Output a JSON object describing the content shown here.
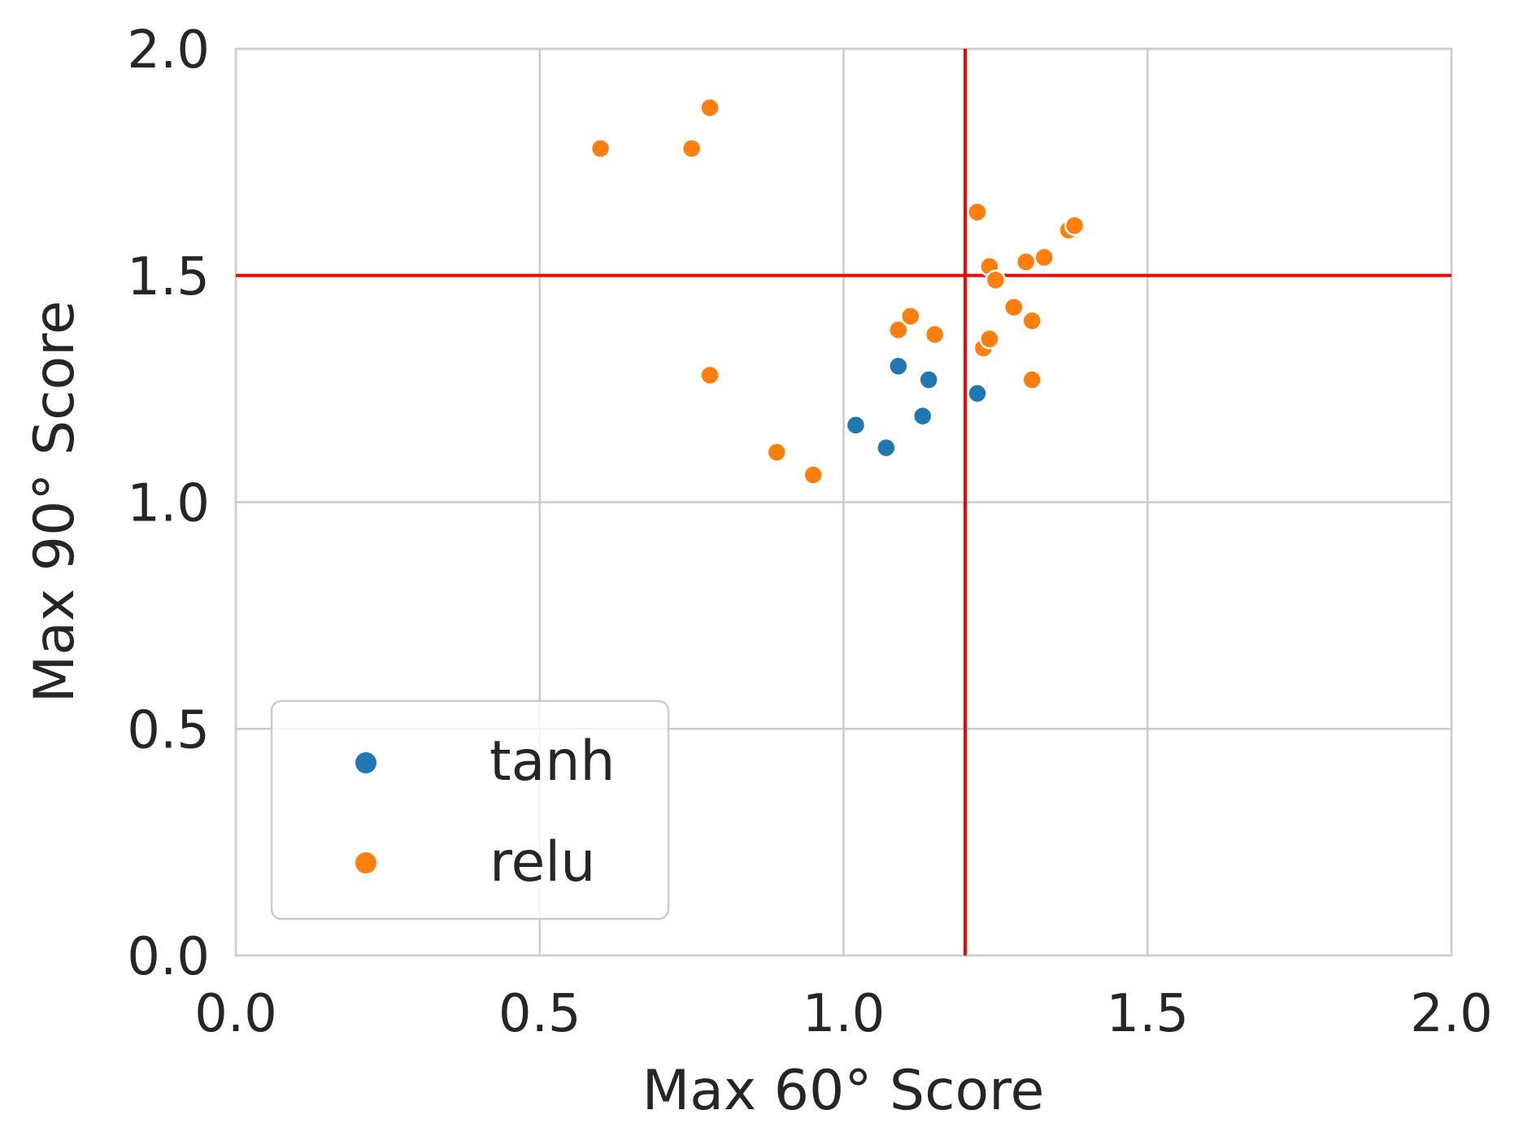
{
  "chart_data": {
    "type": "scatter",
    "title": "",
    "xlabel": "Max 60° Score",
    "ylabel": "Max 90° Score",
    "xlim": [
      0.0,
      2.0
    ],
    "ylim": [
      0.0,
      2.0
    ],
    "x_ticks": [
      "0.0",
      "0.5",
      "1.0",
      "1.5",
      "2.0"
    ],
    "y_ticks": [
      "0.0",
      "0.5",
      "1.0",
      "1.5",
      "2.0"
    ],
    "grid": true,
    "legend_position": "lower-left",
    "reference_lines": {
      "vertical_x": 1.2,
      "horizontal_y": 1.5,
      "color": "#ff0000"
    },
    "series": [
      {
        "name": "tanh",
        "color": "#1f77b4",
        "points": [
          {
            "x": 1.09,
            "y": 1.3
          },
          {
            "x": 1.14,
            "y": 1.27
          },
          {
            "x": 1.22,
            "y": 1.24
          },
          {
            "x": 1.13,
            "y": 1.19
          },
          {
            "x": 1.02,
            "y": 1.17
          },
          {
            "x": 1.07,
            "y": 1.12
          }
        ]
      },
      {
        "name": "relu",
        "color": "#ff7f0e",
        "points": [
          {
            "x": 0.6,
            "y": 1.78
          },
          {
            "x": 0.75,
            "y": 1.78
          },
          {
            "x": 0.78,
            "y": 1.87
          },
          {
            "x": 0.78,
            "y": 1.28
          },
          {
            "x": 0.89,
            "y": 1.11
          },
          {
            "x": 0.95,
            "y": 1.06
          },
          {
            "x": 1.09,
            "y": 1.38
          },
          {
            "x": 1.11,
            "y": 1.41
          },
          {
            "x": 1.15,
            "y": 1.37
          },
          {
            "x": 1.22,
            "y": 1.64
          },
          {
            "x": 1.23,
            "y": 1.34
          },
          {
            "x": 1.24,
            "y": 1.36
          },
          {
            "x": 1.24,
            "y": 1.52
          },
          {
            "x": 1.25,
            "y": 1.49
          },
          {
            "x": 1.28,
            "y": 1.43
          },
          {
            "x": 1.3,
            "y": 1.53
          },
          {
            "x": 1.31,
            "y": 1.4
          },
          {
            "x": 1.31,
            "y": 1.27
          },
          {
            "x": 1.33,
            "y": 1.54
          },
          {
            "x": 1.37,
            "y": 1.6
          },
          {
            "x": 1.38,
            "y": 1.61
          }
        ]
      }
    ]
  }
}
